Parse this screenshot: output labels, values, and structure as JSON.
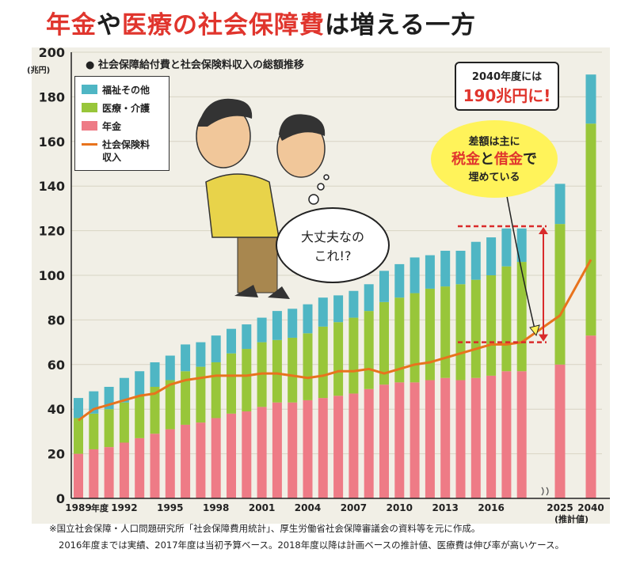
{
  "title": {
    "part1": "年金",
    "part2": "や",
    "part3": "医療の社会保障費",
    "part4": "は増える一方"
  },
  "subtitle": "● 社会保障給付費と社会保険料収入の総額推移",
  "y_unit": "(兆円)",
  "legend": {
    "welfare": "福祉その他",
    "medical": "医療・介護",
    "pension": "年金",
    "insurance_l1": "社会保険料",
    "insurance_l2": "収入"
  },
  "callout_2040": {
    "line1": "2040年度には",
    "line2": "190兆円に!"
  },
  "callout_gap": {
    "line1": "差額は主に",
    "tax": "税金",
    "to": "と",
    "debt": "借金",
    "de": "で",
    "line3": "埋めている"
  },
  "speech": {
    "line1": "大丈夫なの",
    "line2": "これ!?"
  },
  "x_suffix": "年度",
  "x_estimate": "(推計値)",
  "notes": {
    "line1": "※国立社会保障・人口問題研究所「社会保障費用統計」、厚生労働省社会保障審議会の資料等を元に作成。",
    "line2": "2016年度までは実績、2017年度は当初予算ベース。2018年度以降は計画ベースの推計値、医療費は伸び率が高いケース。"
  },
  "colors": {
    "welfare": "#4fb6c4",
    "medical": "#98c63a",
    "pension": "#ee7b86",
    "insurance": "#e8731d",
    "accent": "#e0352d",
    "dash": "#d92b2b"
  },
  "chart_data": {
    "type": "bar",
    "stacked": true,
    "categories": [
      "1989",
      "1990",
      "1991",
      "1992",
      "1993",
      "1994",
      "1995",
      "1996",
      "1997",
      "1998",
      "1999",
      "2000",
      "2001",
      "2002",
      "2003",
      "2004",
      "2005",
      "2006",
      "2007",
      "2008",
      "2009",
      "2010",
      "2011",
      "2012",
      "2013",
      "2014",
      "2015",
      "2016",
      "2017",
      "2018",
      "2025",
      "2040"
    ],
    "x_tick_labels": [
      "1989",
      "1992",
      "1995",
      "1998",
      "2001",
      "2004",
      "2007",
      "2010",
      "2013",
      "2016",
      "2025",
      "2040"
    ],
    "series": [
      {
        "name": "年金",
        "values": [
          20,
          22,
          23,
          25,
          27,
          29,
          31,
          33,
          34,
          36,
          38,
          39,
          41,
          43,
          43,
          44,
          45,
          46,
          47,
          49,
          51,
          52,
          52,
          53,
          54,
          53,
          54,
          55,
          57,
          57,
          60,
          73
        ]
      },
      {
        "name": "医療・介護",
        "values": [
          16,
          16,
          17,
          18,
          19,
          21,
          22,
          24,
          25,
          25,
          27,
          28,
          29,
          28,
          29,
          30,
          32,
          33,
          34,
          35,
          37,
          38,
          40,
          41,
          41,
          43,
          44,
          45,
          47,
          49,
          63,
          95
        ]
      },
      {
        "name": "福祉その他",
        "values": [
          9,
          10,
          10,
          11,
          11,
          11,
          11,
          12,
          11,
          12,
          11,
          11,
          11,
          13,
          13,
          13,
          13,
          12,
          12,
          12,
          14,
          15,
          16,
          15,
          16,
          15,
          17,
          17,
          17,
          15,
          18,
          22
        ]
      },
      {
        "name": "社会保険料収入",
        "type": "line",
        "values": [
          35,
          40,
          42,
          44,
          46,
          47,
          51,
          53,
          54,
          55,
          55,
          55,
          56,
          56,
          55,
          54,
          55,
          57,
          57,
          58,
          56,
          58,
          60,
          61,
          63,
          65,
          67,
          69,
          69,
          70,
          82,
          107
        ]
      }
    ],
    "ylim": [
      0,
      200
    ],
    "yticks": [
      0,
      20,
      40,
      60,
      80,
      100,
      120,
      140,
      160,
      180,
      200
    ],
    "annotations": {
      "gap_top": 122,
      "gap_bottom": 70
    }
  }
}
